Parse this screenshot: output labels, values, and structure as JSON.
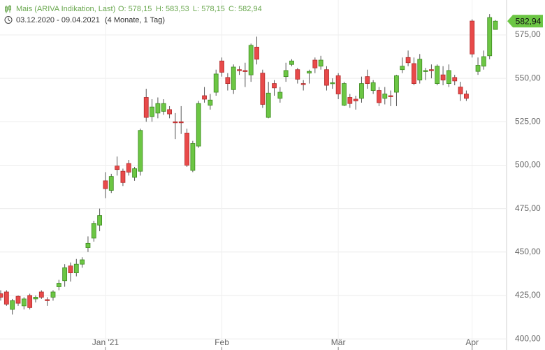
{
  "chart_data": {
    "type": "candlestick",
    "title": "Mais (ARIVA Indikation, Last)",
    "ohlc_labels": [
      "O: 578,15",
      "H: 583,53",
      "L: 578,15",
      "C: 582,94"
    ],
    "subtitle": "03.12.2020 - 09.04.2021",
    "period": "(4 Monate, 1 Tag)",
    "last_price_label": "582,94",
    "up_color": "#6cc644",
    "down_color": "#e84a4a",
    "grid": true,
    "categories": [
      null,
      null,
      null,
      null,
      null,
      null,
      null,
      null,
      null,
      null,
      null,
      null,
      null,
      null,
      null,
      null,
      null,
      null,
      "Jan '21",
      null,
      null,
      null,
      null,
      null,
      null,
      null,
      null,
      null,
      null,
      null,
      null,
      null,
      null,
      null,
      null,
      null,
      null,
      null,
      "Feb",
      null,
      null,
      null,
      null,
      null,
      null,
      null,
      null,
      null,
      null,
      null,
      null,
      null,
      null,
      null,
      null,
      null,
      null,
      null,
      "Mär",
      null,
      null,
      null,
      null,
      null,
      null,
      null,
      null,
      null,
      null,
      null,
      null,
      null,
      null,
      null,
      null,
      null,
      null,
      null,
      null,
      null,
      null,
      "Apr",
      null,
      null,
      null,
      null
    ],
    "open": [
      426,
      427,
      417,
      424.5,
      419,
      425,
      423,
      427,
      422.6,
      424,
      430,
      433.5,
      442,
      438,
      443,
      452.5,
      458,
      465.5,
      491,
      485.5,
      499.5,
      496.5,
      501,
      493,
      496.5,
      539,
      528,
      530,
      531,
      532,
      525,
      525,
      518.5,
      497,
      511,
      540,
      534.5,
      542,
      560,
      550.5,
      543.5,
      555,
      554.5,
      552,
      568,
      553,
      527.5,
      547,
      538.5,
      551,
      558,
      555,
      547,
      553,
      560.5,
      557,
      555,
      547,
      551.5,
      534.5,
      539,
      538,
      538.5,
      551,
      543,
      543,
      538.5,
      540,
      542,
      555,
      562,
      558.5,
      549,
      554,
      555,
      547,
      552,
      547,
      550.5,
      545,
      541,
      583,
      554,
      557,
      563,
      578.15
    ],
    "high": [
      428,
      428,
      423,
      425,
      424,
      426,
      425,
      428,
      424,
      428,
      434,
      443,
      444,
      446,
      447,
      459,
      468,
      475,
      496,
      495,
      505,
      498,
      503,
      499,
      521,
      544,
      538,
      539,
      538,
      534,
      530,
      534,
      521,
      514,
      537,
      545,
      541,
      555,
      562,
      553,
      558,
      557,
      559,
      570,
      574,
      555,
      548,
      549,
      545,
      559,
      561,
      556,
      549,
      555,
      562,
      563,
      557,
      550,
      553,
      548,
      541,
      540,
      551,
      555,
      549,
      545,
      545,
      543,
      552,
      562,
      566,
      562,
      564,
      556,
      558,
      558,
      557,
      558,
      552,
      548,
      543,
      584,
      562,
      566,
      587,
      583.53
    ],
    "low": [
      422,
      419,
      414,
      419,
      417,
      417,
      421,
      423,
      419,
      422,
      428,
      430,
      433,
      436,
      441,
      450,
      456,
      462,
      481,
      484,
      494,
      488,
      494,
      491,
      494,
      525,
      525,
      527,
      529,
      527,
      515,
      518,
      499,
      496,
      510,
      536,
      532,
      540,
      551,
      543,
      541,
      552,
      545,
      548,
      558,
      533,
      527,
      540,
      536,
      548,
      557,
      547,
      543,
      547,
      553,
      555,
      543,
      544,
      538,
      534,
      533,
      532,
      536,
      544,
      541,
      534,
      535,
      534,
      534,
      553,
      557,
      546,
      547,
      549,
      550,
      546,
      546,
      545,
      546,
      537,
      537,
      562,
      552,
      555,
      561,
      578.15
    ],
    "close": [
      424,
      420,
      422,
      420.5,
      423,
      418,
      424,
      424,
      422,
      427,
      432,
      441,
      438,
      443,
      445.5,
      455,
      466.5,
      471,
      486.5,
      493.5,
      497.5,
      490,
      496,
      498,
      520,
      527.5,
      533.5,
      535.5,
      535.5,
      529.5,
      524.5,
      524.7,
      500,
      512.5,
      535.5,
      538,
      537.5,
      552.5,
      553.5,
      547,
      556.5,
      554.5,
      554,
      569,
      561,
      535,
      541.5,
      544.5,
      542,
      554.5,
      560,
      549.5,
      546.5,
      554,
      556,
      560.5,
      546,
      547.5,
      541,
      547,
      535.5,
      537,
      547,
      547,
      547.5,
      536,
      541,
      539.5,
      551.5,
      557,
      559,
      547,
      561,
      554.5,
      554.7,
      557,
      549,
      554.5,
      548.5,
      541,
      538.5,
      564,
      557.5,
      562.5,
      585,
      582.94
    ],
    "ylim": [
      393.6,
      595.1
    ],
    "yticks": [
      {
        "value": 400,
        "label": "400,00"
      },
      {
        "value": 425,
        "label": "425,00"
      },
      {
        "value": 450,
        "label": "450,00"
      },
      {
        "value": 475,
        "label": "475,00"
      },
      {
        "value": 500,
        "label": "500,00"
      },
      {
        "value": 525,
        "label": "525,00"
      },
      {
        "value": 550,
        "label": "550,00"
      },
      {
        "value": 575,
        "label": "575,00"
      }
    ]
  }
}
